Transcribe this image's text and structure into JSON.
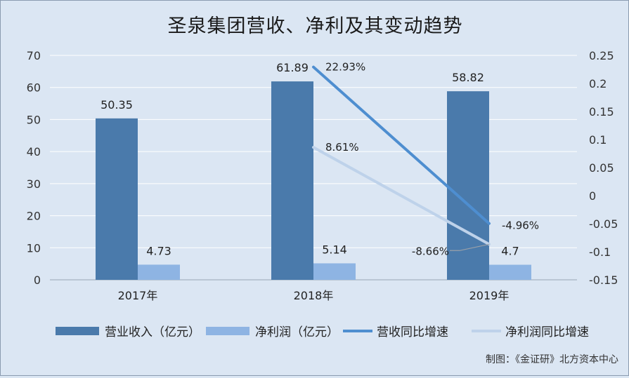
{
  "chart_data": {
    "type": "bar",
    "title": "圣泉集团营收、净利及其变动趋势",
    "categories": [
      "2017年",
      "2018年",
      "2019年"
    ],
    "y_left": {
      "ticks": [
        "0",
        "10",
        "20",
        "30",
        "40",
        "50",
        "60",
        "70"
      ],
      "min": 0,
      "max": 70
    },
    "y_right": {
      "ticks": [
        "-0.15",
        "-0.1",
        "-0.05",
        "0",
        "0.05",
        "0.1",
        "0.15",
        "0.2",
        "0.25"
      ],
      "min": -0.15,
      "max": 0.25
    },
    "series": [
      {
        "name": "营业收入（亿元）",
        "kind": "bar",
        "axis": "left",
        "color": "#4a7aab",
        "values": [
          50.35,
          61.89,
          58.82
        ],
        "labels": [
          "50.35",
          "61.89",
          "58.82"
        ]
      },
      {
        "name": "净利润（亿元）",
        "kind": "bar",
        "axis": "left",
        "color": "#8eb4e3",
        "values": [
          4.73,
          5.14,
          4.7
        ],
        "labels": [
          "4.73",
          "5.14",
          "4.7"
        ]
      },
      {
        "name": "营收同比增速",
        "kind": "line",
        "axis": "right",
        "color": "#4e8ed0",
        "values": [
          null,
          0.2293,
          -0.0496
        ],
        "labels": [
          "",
          "22.93%",
          "-4.96%"
        ]
      },
      {
        "name": "净利润同比增速",
        "kind": "line",
        "axis": "right",
        "color": "#bed2ea",
        "values": [
          null,
          0.0861,
          -0.0866
        ],
        "labels": [
          "",
          "8.61%",
          "-8.66%"
        ]
      }
    ],
    "grid": true,
    "legend_position": "bottom"
  },
  "source_note": "制图：《金证研》北方资本中心"
}
